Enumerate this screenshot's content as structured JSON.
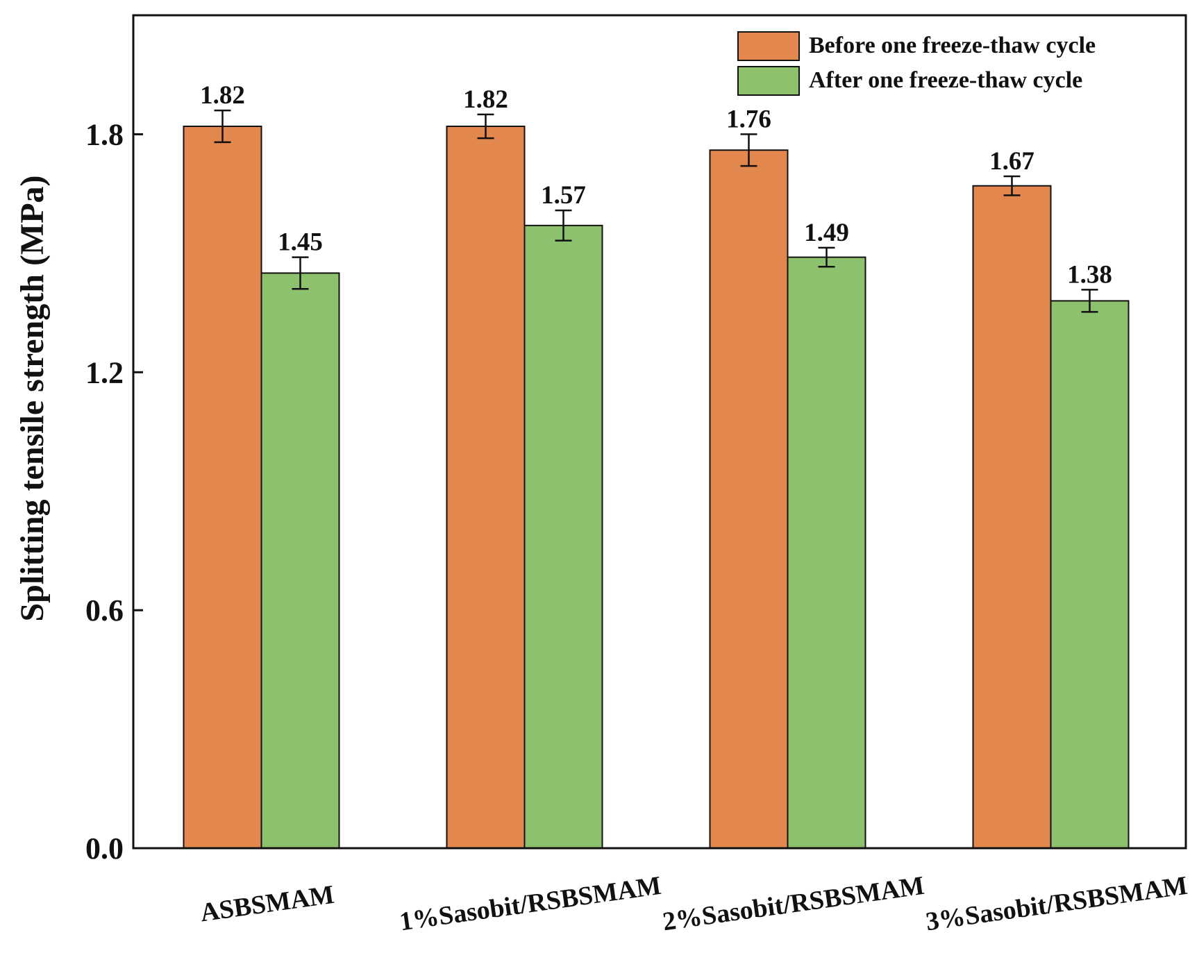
{
  "chart_data": {
    "type": "bar",
    "ylabel": "Splitting tensile strength (MPa)",
    "xlabel": "",
    "title": "",
    "ylim": [
      0,
      2.1
    ],
    "yticks": [
      0.0,
      0.6,
      1.2,
      1.8
    ],
    "ytick_labels": [
      "0.0",
      "0.6",
      "1.2",
      "1.8"
    ],
    "categories": [
      "ASBSMAM",
      "1%Sasobit/RSBSMAM",
      "2%Sasobit/RSBSMAM",
      "3%Sasobit/RSBSMAM"
    ],
    "series": [
      {
        "name": "Before one freeze-thaw cycle",
        "color": "#E2874E",
        "values": [
          1.82,
          1.82,
          1.76,
          1.67
        ],
        "value_labels": [
          "1.82",
          "1.82",
          "1.76",
          "1.67"
        ],
        "errors": [
          0.04,
          0.03,
          0.04,
          0.024
        ]
      },
      {
        "name": "After one freeze-thaw cycle",
        "color": "#8EC16E",
        "values": [
          1.45,
          1.57,
          1.49,
          1.38
        ],
        "value_labels": [
          "1.45",
          "1.57",
          "1.49",
          "1.38"
        ],
        "errors": [
          0.04,
          0.038,
          0.024,
          0.028
        ]
      }
    ],
    "legend_position": "top-right",
    "grid": false
  }
}
